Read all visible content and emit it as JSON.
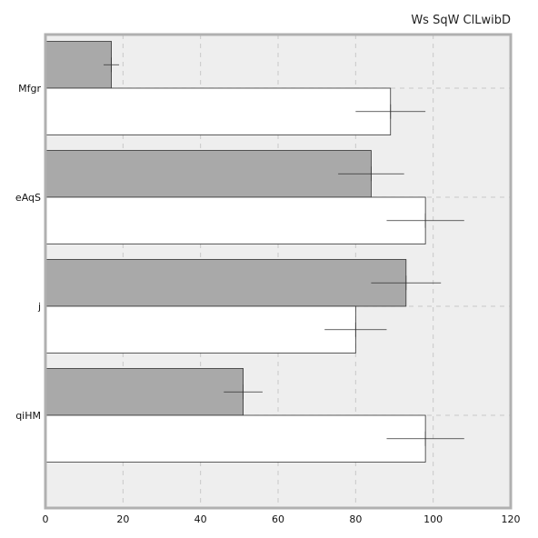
{
  "chart_data": {
    "type": "bar",
    "orientation": "horizontal",
    "title": "Ws SqW ClLwibD",
    "categories": [
      "Mfgr",
      "eAqS",
      "j",
      "qiHM"
    ],
    "series": [
      {
        "color": "#a9a9a9",
        "values": [
          17,
          84,
          93,
          51
        ],
        "errors": [
          2,
          8.5,
          9,
          5
        ]
      },
      {
        "color": "#ffffff",
        "values": [
          89,
          98,
          80,
          98
        ],
        "errors": [
          9,
          10,
          8,
          10
        ]
      }
    ],
    "xlim": [
      0,
      120
    ],
    "xticks": [
      0,
      20,
      40,
      60,
      80,
      100,
      120
    ],
    "xlabel": "",
    "ylabel": "",
    "grid": true,
    "legend": "none",
    "background_color": "#eeeeee"
  }
}
